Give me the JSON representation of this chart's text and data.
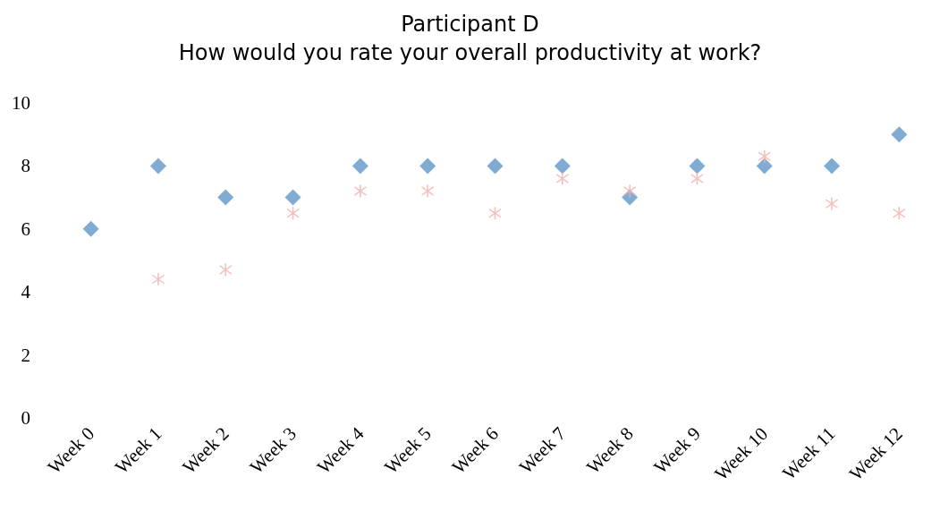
{
  "chart_data": {
    "type": "scatter",
    "title": "Participant D",
    "subtitle": "How would you rate your overall productivity at work?",
    "categories": [
      "Week 0",
      "Week 1",
      "Week 2",
      "Week 3",
      "Week 4",
      "Week 5",
      "Week 6",
      "Week 7",
      "Week 8",
      "Week 9",
      "Week 10",
      "Week 11",
      "Week 12"
    ],
    "series": [
      {
        "color": "#6096c8",
        "marker": "diamond",
        "values": [
          6,
          8,
          7,
          7,
          8,
          8,
          8,
          8,
          7,
          8,
          8,
          8,
          9
        ]
      },
      {
        "color": "#f0b0b0",
        "marker": "cross",
        "values": [
          null,
          4.4,
          4.7,
          6.5,
          7.2,
          7.2,
          6.5,
          7.6,
          7.2,
          7.6,
          8.3,
          6.8,
          6.5
        ]
      }
    ],
    "ylim": [
      0,
      10
    ],
    "yticks": [
      0,
      2,
      4,
      6,
      8,
      10
    ],
    "grid": false
  }
}
